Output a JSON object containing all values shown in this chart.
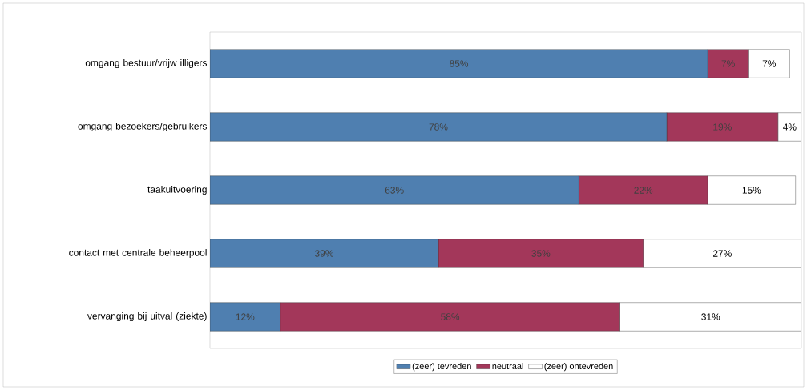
{
  "chart_data": {
    "type": "bar",
    "orientation": "horizontal",
    "stacked": true,
    "legend": "bottom",
    "categories": [
      "omgang bestuur/vrijw illigers",
      "omgang bezoekers/gebruikers",
      "taakuitvoering",
      "contact met centrale beheerpool",
      "vervanging bij uitval (ziekte)"
    ],
    "series": [
      {
        "name": "(zeer) tevreden",
        "color": "#4f7fb0",
        "values": [
          85,
          78,
          63,
          39,
          12
        ],
        "value_labels": [
          "85%",
          "78%",
          "63%",
          "39%",
          "12%"
        ]
      },
      {
        "name": "neutraal",
        "color": "#a3375a",
        "values": [
          7,
          19,
          22,
          35,
          58
        ],
        "value_labels": [
          "7%",
          "19%",
          "22%",
          "35%",
          "58%"
        ]
      },
      {
        "name": "(zeer) ontevreden",
        "color": "#ffffff",
        "values": [
          7,
          4,
          15,
          27,
          31
        ],
        "value_labels": [
          "7%",
          "4%",
          "15%",
          "27%",
          "31%"
        ]
      }
    ]
  }
}
